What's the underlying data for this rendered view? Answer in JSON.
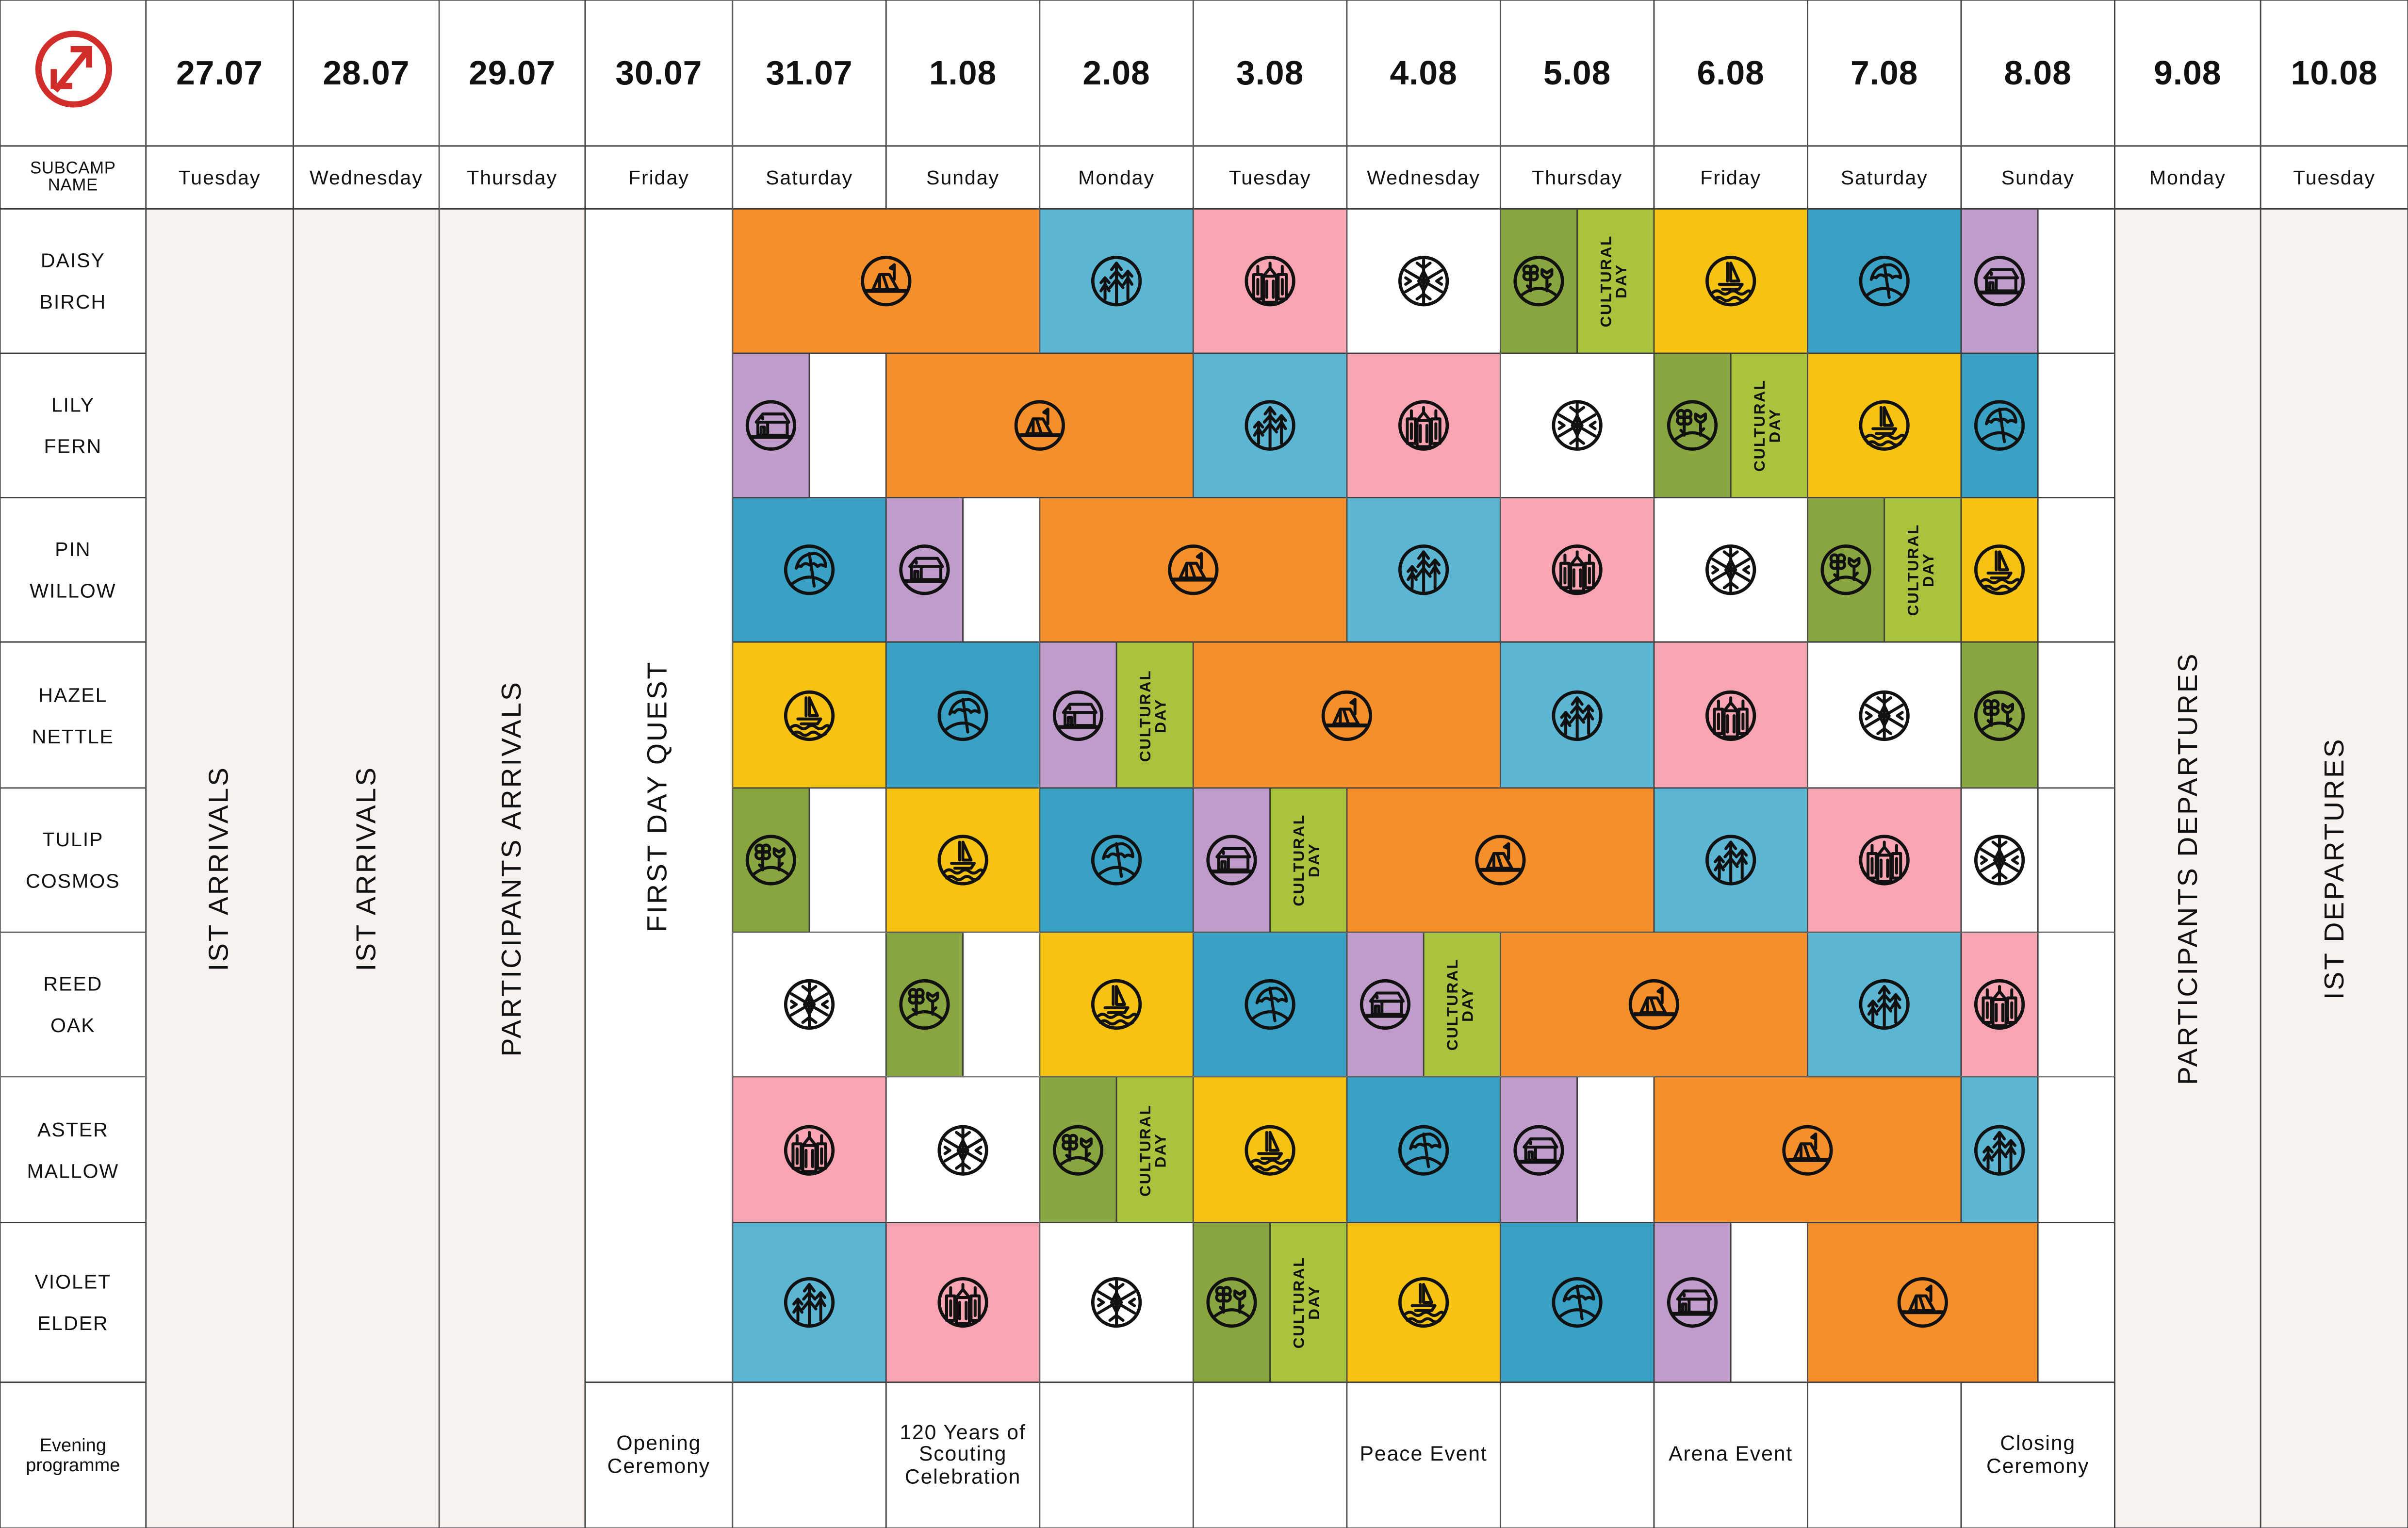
{
  "header": {
    "logo": "scout-logo",
    "subcamp_label": "SUBCAMP NAME",
    "dates": [
      "27.07",
      "28.07",
      "29.07",
      "30.07",
      "31.07",
      "1.08",
      "2.08",
      "3.08",
      "4.08",
      "5.08",
      "6.08",
      "7.08",
      "8.08",
      "9.08",
      "10.08"
    ],
    "days": [
      "Tuesday",
      "Wednesday",
      "Thursday",
      "Friday",
      "Saturday",
      "Sunday",
      "Monday",
      "Tuesday",
      "Wednesday",
      "Thursday",
      "Friday",
      "Saturday",
      "Sunday",
      "Monday",
      "Tuesday"
    ]
  },
  "colors": {
    "camp": "#f58f2a",
    "forest": "#5bb5d3",
    "city": "#f7a5b3",
    "snow": "#ffffff",
    "garden": "#88a540",
    "cultural": "#a8c43c",
    "boat": "#f6c313",
    "beach": "#38a1c4",
    "house": "#bf9cca",
    "empty": "#ffffff",
    "neutral": "#f7f2ef",
    "logo": "#d12e2b"
  },
  "span_columns": [
    {
      "date": "27.07",
      "label": "IST ARRIVALS",
      "shaded": true,
      "through_evening": true
    },
    {
      "date": "28.07",
      "label": "IST ARRIVALS",
      "shaded": true,
      "through_evening": true
    },
    {
      "date": "29.07",
      "label": "PARTICIPANTS ARRIVALS",
      "shaded": true,
      "through_evening": true
    },
    {
      "date": "30.07",
      "label": "FIRST DAY QUEST",
      "shaded": false,
      "through_evening": false
    },
    {
      "date": "9.08",
      "label": "PARTICIPANTS DEPARTURES",
      "shaded": true,
      "through_evening": true
    },
    {
      "date": "10.08",
      "label": "IST DEPARTURES",
      "shaded": true,
      "through_evening": true
    }
  ],
  "cultural_label": [
    "CULTURAL",
    "DAY"
  ],
  "schedule_start": "31.07",
  "subcamps": [
    {
      "name_lines": [
        "DAISY",
        "BIRCH"
      ],
      "schedule": [
        {
          "activity": "camp",
          "days": 2
        },
        {
          "activity": "forest",
          "days": 1
        },
        {
          "activity": "city",
          "days": 1
        },
        {
          "activity": "snow",
          "days": 1
        },
        {
          "activity": "garden",
          "days": 0.5
        },
        {
          "activity": "cultural",
          "days": 0.5
        },
        {
          "activity": "boat",
          "days": 1
        },
        {
          "activity": "beach",
          "days": 1
        },
        {
          "activity": "house",
          "days": 0.5
        },
        {
          "activity": "empty",
          "days": 0.5
        }
      ]
    },
    {
      "name_lines": [
        "LILY",
        "FERN"
      ],
      "schedule": [
        {
          "activity": "house",
          "days": 0.5
        },
        {
          "activity": "empty",
          "days": 0.5
        },
        {
          "activity": "camp",
          "days": 2
        },
        {
          "activity": "forest",
          "days": 1
        },
        {
          "activity": "city",
          "days": 1
        },
        {
          "activity": "snow",
          "days": 1
        },
        {
          "activity": "garden",
          "days": 0.5
        },
        {
          "activity": "cultural",
          "days": 0.5
        },
        {
          "activity": "boat",
          "days": 1
        },
        {
          "activity": "beach",
          "days": 0.5
        },
        {
          "activity": "empty",
          "days": 0.5
        }
      ]
    },
    {
      "name_lines": [
        "PIN",
        "WILLOW"
      ],
      "schedule": [
        {
          "activity": "beach",
          "days": 1
        },
        {
          "activity": "house",
          "days": 0.5
        },
        {
          "activity": "empty",
          "days": 0.5
        },
        {
          "activity": "camp",
          "days": 2
        },
        {
          "activity": "forest",
          "days": 1
        },
        {
          "activity": "city",
          "days": 1
        },
        {
          "activity": "snow",
          "days": 1
        },
        {
          "activity": "garden",
          "days": 0.5
        },
        {
          "activity": "cultural",
          "days": 0.5
        },
        {
          "activity": "boat",
          "days": 0.5
        },
        {
          "activity": "empty",
          "days": 0.5
        }
      ]
    },
    {
      "name_lines": [
        "HAZEL",
        "NETTLE"
      ],
      "schedule": [
        {
          "activity": "boat",
          "days": 1
        },
        {
          "activity": "beach",
          "days": 1
        },
        {
          "activity": "house",
          "days": 0.5
        },
        {
          "activity": "cultural",
          "days": 0.5
        },
        {
          "activity": "camp",
          "days": 2
        },
        {
          "activity": "forest",
          "days": 1
        },
        {
          "activity": "city",
          "days": 1
        },
        {
          "activity": "snow",
          "days": 1
        },
        {
          "activity": "garden",
          "days": 0.5
        },
        {
          "activity": "empty",
          "days": 0.5
        }
      ]
    },
    {
      "name_lines": [
        "TULIP",
        "COSMOS"
      ],
      "schedule": [
        {
          "activity": "garden",
          "days": 0.5
        },
        {
          "activity": "empty",
          "days": 0.5
        },
        {
          "activity": "boat",
          "days": 1
        },
        {
          "activity": "beach",
          "days": 1
        },
        {
          "activity": "house",
          "days": 0.5
        },
        {
          "activity": "cultural",
          "days": 0.5
        },
        {
          "activity": "camp",
          "days": 2
        },
        {
          "activity": "forest",
          "days": 1
        },
        {
          "activity": "city",
          "days": 1
        },
        {
          "activity": "snow",
          "days": 0.5
        },
        {
          "activity": "empty",
          "days": 0.5
        }
      ]
    },
    {
      "name_lines": [
        "REED",
        "OAK"
      ],
      "schedule": [
        {
          "activity": "snow",
          "days": 1
        },
        {
          "activity": "garden",
          "days": 0.5
        },
        {
          "activity": "empty",
          "days": 0.5
        },
        {
          "activity": "boat",
          "days": 1
        },
        {
          "activity": "beach",
          "days": 1
        },
        {
          "activity": "house",
          "days": 0.5
        },
        {
          "activity": "cultural",
          "days": 0.5
        },
        {
          "activity": "camp",
          "days": 2
        },
        {
          "activity": "forest",
          "days": 1
        },
        {
          "activity": "city",
          "days": 0.5
        },
        {
          "activity": "empty",
          "days": 0.5
        }
      ]
    },
    {
      "name_lines": [
        "ASTER",
        "MALLOW"
      ],
      "schedule": [
        {
          "activity": "city",
          "days": 1
        },
        {
          "activity": "snow",
          "days": 1
        },
        {
          "activity": "garden",
          "days": 0.5
        },
        {
          "activity": "cultural",
          "days": 0.5
        },
        {
          "activity": "boat",
          "days": 1
        },
        {
          "activity": "beach",
          "days": 1
        },
        {
          "activity": "house",
          "days": 0.5
        },
        {
          "activity": "empty",
          "days": 0.5
        },
        {
          "activity": "camp",
          "days": 2
        },
        {
          "activity": "forest",
          "days": 0.5
        },
        {
          "activity": "empty",
          "days": 0.5
        }
      ]
    },
    {
      "name_lines": [
        "VIOLET",
        "ELDER"
      ],
      "schedule": [
        {
          "activity": "forest",
          "days": 1
        },
        {
          "activity": "city",
          "days": 1
        },
        {
          "activity": "snow",
          "days": 1
        },
        {
          "activity": "garden",
          "days": 0.5
        },
        {
          "activity": "cultural",
          "days": 0.5
        },
        {
          "activity": "boat",
          "days": 1
        },
        {
          "activity": "beach",
          "days": 1
        },
        {
          "activity": "house",
          "days": 0.5
        },
        {
          "activity": "empty",
          "days": 0.5
        },
        {
          "activity": "camp",
          "days": 1.5
        },
        {
          "activity": "empty",
          "days": 0.5
        }
      ]
    }
  ],
  "evening": {
    "label": "Evening programme",
    "items": [
      {
        "date": "30.07",
        "text": "Opening Ceremony"
      },
      {
        "date": "31.07",
        "text": ""
      },
      {
        "date": "1.08",
        "text": "120 Years of Scouting Celebration"
      },
      {
        "date": "2.08",
        "text": ""
      },
      {
        "date": "3.08",
        "text": ""
      },
      {
        "date": "4.08",
        "text": "Peace Event"
      },
      {
        "date": "5.08",
        "text": ""
      },
      {
        "date": "6.08",
        "text": "Arena Event"
      },
      {
        "date": "7.08",
        "text": ""
      },
      {
        "date": "8.08",
        "text": "Closing Ceremony"
      }
    ]
  }
}
